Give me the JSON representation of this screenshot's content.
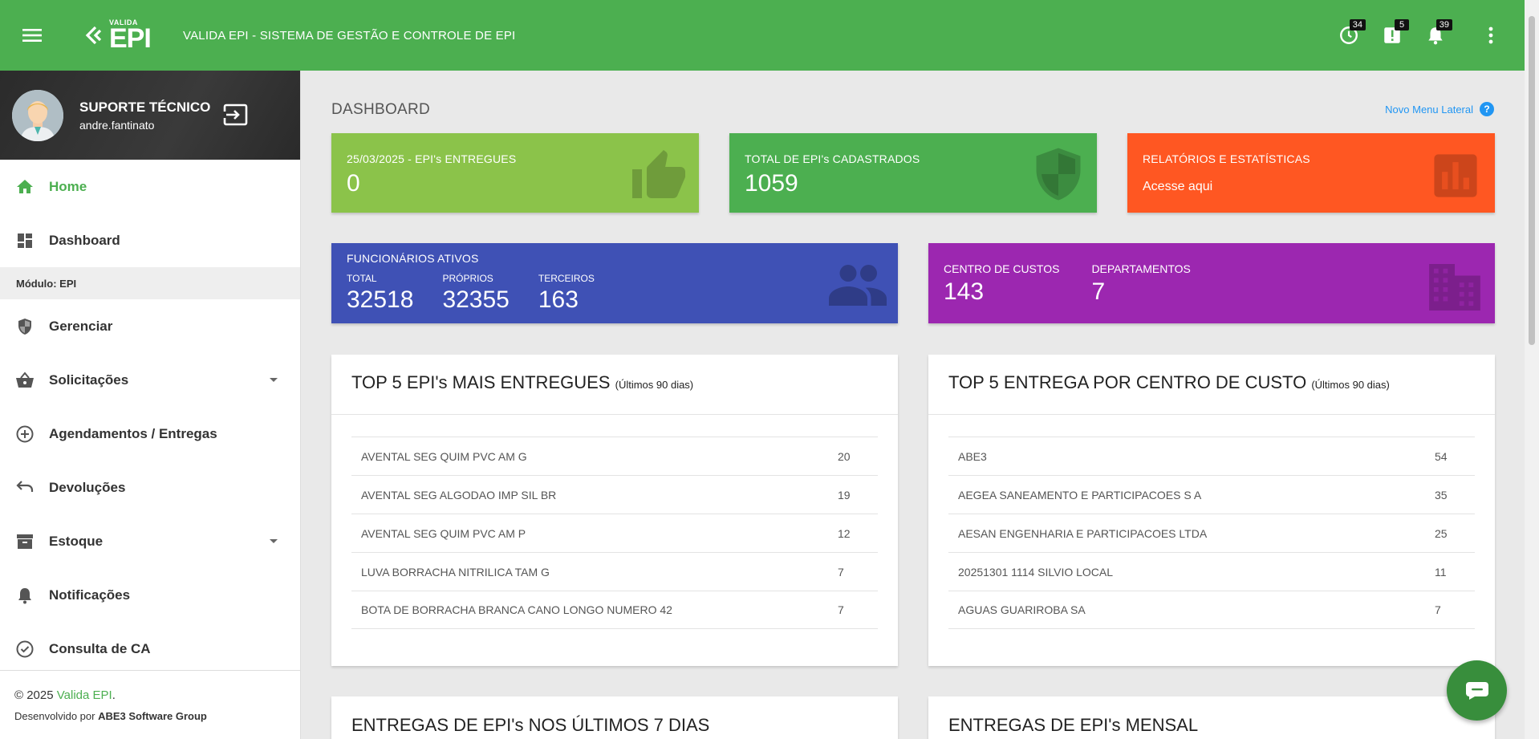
{
  "header": {
    "logo_small": "VALIDA",
    "logo_big": "EPI",
    "title": "VALIDA EPI - SISTEMA DE GESTÃO E CONTROLE DE EPI",
    "badges": {
      "history": "34",
      "alerts": "5",
      "notifications": "39"
    },
    "icons": [
      "menu-icon",
      "history-icon",
      "alert-icon",
      "bell-icon",
      "more-vertical-icon"
    ]
  },
  "sidebar": {
    "user_name": "SUPORTE TÉCNICO",
    "user_login": "andre.fantinato",
    "module_label": "Módulo:",
    "module_name": "EPI",
    "items": [
      {
        "label": "Home",
        "icon": "home-icon"
      },
      {
        "label": "Dashboard",
        "icon": "dashboard-icon"
      },
      {
        "label": "Gerenciar",
        "icon": "shield-icon"
      },
      {
        "label": "Solicitações",
        "icon": "basket-icon"
      },
      {
        "label": "Agendamentos / Entregas",
        "icon": "add-circle-icon"
      },
      {
        "label": "Devoluções",
        "icon": "undo-icon"
      },
      {
        "label": "Estoque",
        "icon": "archive-icon"
      },
      {
        "label": "Notificações",
        "icon": "bell-icon"
      },
      {
        "label": "Consulta de CA",
        "icon": "check-circle-icon"
      }
    ],
    "footer_copy": "© 2025",
    "footer_brand": "Valida EPI",
    "footer_dot": ".",
    "footer_dev": "Desenvolvido por",
    "footer_dev_company": "ABE3 Software Group"
  },
  "main": {
    "page_title": "DASHBOARD",
    "new_menu_link": "Novo Menu Lateral",
    "help_glyph": "?",
    "cards": {
      "delivered": {
        "title": "25/03/2025 - EPI's ENTREGUES",
        "value": "0",
        "icon": "thumb-up-icon"
      },
      "registered": {
        "title": "TOTAL DE EPI's CADASTRADOS",
        "value": "1059",
        "icon": "shield-icon"
      },
      "reports": {
        "title": "RELATÓRIOS E ESTATÍSTICAS",
        "subtitle": "Acesse aqui",
        "icon": "bar-chart-icon"
      },
      "employees": {
        "title": "FUNCIONÁRIOS ATIVOS",
        "total_label": "TOTAL",
        "total": "32518",
        "own_label": "PRÓPRIOS",
        "own": "32355",
        "third_label": "TERCEIROS",
        "third": "163",
        "icon": "people-icon"
      },
      "costs": {
        "cc_label": "CENTRO DE CUSTOS",
        "cc": "143",
        "dept_label": "DEPARTAMENTOS",
        "dept": "7",
        "icon": "building-icon"
      }
    },
    "top_epis": {
      "title": "TOP 5 EPI's MAIS ENTREGUES",
      "subtitle": "(Últimos 90 dias)",
      "rows": [
        {
          "name": "AVENTAL SEG QUIM PVC AM G",
          "value": "20"
        },
        {
          "name": "AVENTAL SEG ALGODAO IMP SIL BR",
          "value": "19"
        },
        {
          "name": "AVENTAL SEG QUIM PVC AM P",
          "value": "12"
        },
        {
          "name": "LUVA BORRACHA NITRILICA TAM G",
          "value": "7"
        },
        {
          "name": "BOTA DE BORRACHA BRANCA CANO LONGO NUMERO 42",
          "value": "7"
        }
      ]
    },
    "top_cost_centers": {
      "title": "TOP 5 ENTREGA POR CENTRO DE CUSTO",
      "subtitle": "(Últimos 90 dias)",
      "rows": [
        {
          "name": "ABE3",
          "value": "54"
        },
        {
          "name": "AEGEA SANEAMENTO E PARTICIPACOES S A",
          "value": "35"
        },
        {
          "name": "AESAN ENGENHARIA E PARTICIPACOES LTDA",
          "value": "25"
        },
        {
          "name": "20251301 1114 SILVIO LOCAL",
          "value": "11"
        },
        {
          "name": "AGUAS GUARIROBA SA",
          "value": "7"
        }
      ]
    },
    "last7_title": "ENTREGAS DE EPI's NOS ÚLTIMOS 7 DIAS",
    "monthly_title": "ENTREGAS DE EPI's MENSAL"
  },
  "colors": {
    "primary": "#4caf50",
    "light_green": "#8bc34a",
    "orange": "#ff5722",
    "indigo": "#3f51b5",
    "purple": "#9c27b0",
    "link_blue": "#2196f3"
  }
}
